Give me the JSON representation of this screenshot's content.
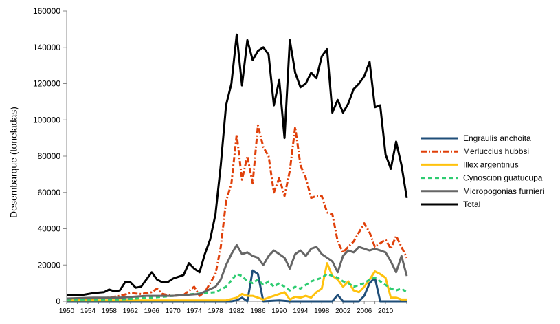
{
  "chart_data": {
    "type": "line",
    "title": "",
    "xlabel": "",
    "ylabel": "Desembarque (toneladas)",
    "xlim": [
      1950,
      2014
    ],
    "ylim": [
      0,
      160000
    ],
    "yticks": [
      0,
      20000,
      40000,
      60000,
      80000,
      100000,
      120000,
      140000,
      160000
    ],
    "ytick_labels": [
      "0",
      "20000",
      "40000",
      "60000",
      "80000",
      "100000",
      "120000",
      "140000",
      "160000"
    ],
    "xtick_labels": [
      "1950",
      "1954",
      "1958",
      "1962",
      "1966",
      "1970",
      "1974",
      "1978",
      "1982",
      "1986",
      "1990",
      "1994",
      "1998",
      "2002",
      "2006",
      "2010"
    ],
    "grid": false,
    "legend_position": "right",
    "series": [
      {
        "name": "Engraulis anchoita",
        "color": "#1f4e79",
        "dash": "solid",
        "points": [
          [
            1950,
            0
          ],
          [
            1980,
            0
          ],
          [
            1981,
            0
          ],
          [
            1982,
            500
          ],
          [
            1983,
            2000
          ],
          [
            1984,
            0
          ],
          [
            1985,
            17000
          ],
          [
            1986,
            15000
          ],
          [
            1987,
            0
          ],
          [
            1990,
            500
          ],
          [
            1992,
            0
          ],
          [
            2000,
            0
          ],
          [
            2001,
            3500
          ],
          [
            2002,
            0
          ],
          [
            2005,
            0
          ],
          [
            2006,
            3000
          ],
          [
            2007,
            10000
          ],
          [
            2008,
            13000
          ],
          [
            2009,
            0
          ],
          [
            2014,
            0
          ]
        ]
      },
      {
        "name": "Merluccius hubbsi",
        "color": "#e0400a",
        "dash": "dashdot",
        "points": [
          [
            1950,
            1000
          ],
          [
            1955,
            1500
          ],
          [
            1958,
            2000
          ],
          [
            1960,
            3000
          ],
          [
            1962,
            4500
          ],
          [
            1964,
            4000
          ],
          [
            1966,
            5000
          ],
          [
            1967,
            7000
          ],
          [
            1968,
            4000
          ],
          [
            1970,
            3000
          ],
          [
            1972,
            3500
          ],
          [
            1974,
            8000
          ],
          [
            1975,
            3000
          ],
          [
            1976,
            5000
          ],
          [
            1977,
            10000
          ],
          [
            1978,
            15000
          ],
          [
            1979,
            30000
          ],
          [
            1980,
            55000
          ],
          [
            1981,
            65000
          ],
          [
            1982,
            92000
          ],
          [
            1983,
            67000
          ],
          [
            1984,
            80000
          ],
          [
            1985,
            65000
          ],
          [
            1986,
            97000
          ],
          [
            1987,
            85000
          ],
          [
            1988,
            80000
          ],
          [
            1989,
            60000
          ],
          [
            1990,
            68000
          ],
          [
            1991,
            58000
          ],
          [
            1992,
            72000
          ],
          [
            1993,
            96000
          ],
          [
            1994,
            75000
          ],
          [
            1995,
            68000
          ],
          [
            1996,
            57000
          ],
          [
            1997,
            58000
          ],
          [
            1998,
            58000
          ],
          [
            1999,
            49000
          ],
          [
            2000,
            48000
          ],
          [
            2001,
            33000
          ],
          [
            2002,
            27000
          ],
          [
            2003,
            30000
          ],
          [
            2004,
            33000
          ],
          [
            2005,
            38000
          ],
          [
            2006,
            43000
          ],
          [
            2007,
            38000
          ],
          [
            2008,
            30000
          ],
          [
            2009,
            32000
          ],
          [
            2010,
            34000
          ],
          [
            2011,
            29000
          ],
          [
            2012,
            36000
          ],
          [
            2013,
            30000
          ],
          [
            2014,
            24000
          ]
        ]
      },
      {
        "name": "Illex argentinus",
        "color": "#ffc20e",
        "dash": "solid",
        "points": [
          [
            1950,
            500
          ],
          [
            1978,
            500
          ],
          [
            1980,
            500
          ],
          [
            1982,
            2000
          ],
          [
            1983,
            4000
          ],
          [
            1984,
            3000
          ],
          [
            1985,
            3000
          ],
          [
            1986,
            2000
          ],
          [
            1987,
            1000
          ],
          [
            1988,
            2000
          ],
          [
            1989,
            3000
          ],
          [
            1990,
            4000
          ],
          [
            1991,
            5000
          ],
          [
            1992,
            1000
          ],
          [
            1993,
            2500
          ],
          [
            1994,
            2000
          ],
          [
            1995,
            3000
          ],
          [
            1996,
            2000
          ],
          [
            1997,
            5000
          ],
          [
            1998,
            7000
          ],
          [
            1999,
            21000
          ],
          [
            2000,
            14000
          ],
          [
            2001,
            12000
          ],
          [
            2002,
            8000
          ],
          [
            2003,
            11000
          ],
          [
            2004,
            6000
          ],
          [
            2005,
            5000
          ],
          [
            2006,
            8000
          ],
          [
            2007,
            12000
          ],
          [
            2008,
            16500
          ],
          [
            2009,
            15000
          ],
          [
            2010,
            13000
          ],
          [
            2011,
            2000
          ],
          [
            2012,
            2000
          ],
          [
            2013,
            1000
          ],
          [
            2014,
            1000
          ]
        ]
      },
      {
        "name": "Cynoscion guatucupa",
        "color": "#2ecc71",
        "dash": "dash",
        "points": [
          [
            1950,
            1000
          ],
          [
            1960,
            1000
          ],
          [
            1966,
            2000
          ],
          [
            1970,
            3000
          ],
          [
            1974,
            4000
          ],
          [
            1978,
            5000
          ],
          [
            1980,
            8000
          ],
          [
            1982,
            15000
          ],
          [
            1983,
            14000
          ],
          [
            1984,
            11000
          ],
          [
            1985,
            10000
          ],
          [
            1986,
            12000
          ],
          [
            1987,
            9000
          ],
          [
            1988,
            11000
          ],
          [
            1989,
            8000
          ],
          [
            1990,
            10000
          ],
          [
            1991,
            8000
          ],
          [
            1992,
            6000
          ],
          [
            1993,
            8000
          ],
          [
            1994,
            7000
          ],
          [
            1995,
            9000
          ],
          [
            1996,
            11000
          ],
          [
            1997,
            12000
          ],
          [
            1998,
            13000
          ],
          [
            1999,
            15000
          ],
          [
            2000,
            14000
          ],
          [
            2001,
            13000
          ],
          [
            2002,
            11000
          ],
          [
            2003,
            10000
          ],
          [
            2004,
            8000
          ],
          [
            2005,
            9000
          ],
          [
            2006,
            10000
          ],
          [
            2007,
            12000
          ],
          [
            2008,
            13000
          ],
          [
            2009,
            11000
          ],
          [
            2010,
            9000
          ],
          [
            2011,
            7000
          ],
          [
            2012,
            6000
          ],
          [
            2013,
            7000
          ],
          [
            2014,
            5000
          ]
        ]
      },
      {
        "name": "Micropogonias furnieri",
        "color": "#666666",
        "dash": "solid",
        "points": [
          [
            1950,
            1500
          ],
          [
            1955,
            2000
          ],
          [
            1960,
            2000
          ],
          [
            1965,
            3000
          ],
          [
            1970,
            3000
          ],
          [
            1975,
            4000
          ],
          [
            1978,
            8000
          ],
          [
            1979,
            12000
          ],
          [
            1980,
            20000
          ],
          [
            1981,
            26000
          ],
          [
            1982,
            31000
          ],
          [
            1983,
            26000
          ],
          [
            1984,
            27000
          ],
          [
            1985,
            25000
          ],
          [
            1986,
            24000
          ],
          [
            1987,
            20000
          ],
          [
            1988,
            25000
          ],
          [
            1989,
            28000
          ],
          [
            1990,
            26000
          ],
          [
            1991,
            24000
          ],
          [
            1992,
            18000
          ],
          [
            1993,
            26000
          ],
          [
            1994,
            28000
          ],
          [
            1995,
            25000
          ],
          [
            1996,
            29000
          ],
          [
            1997,
            30000
          ],
          [
            1998,
            26000
          ],
          [
            1999,
            24000
          ],
          [
            2000,
            22000
          ],
          [
            2001,
            16000
          ],
          [
            2002,
            25000
          ],
          [
            2003,
            28000
          ],
          [
            2004,
            27000
          ],
          [
            2005,
            30000
          ],
          [
            2006,
            29000
          ],
          [
            2007,
            28000
          ],
          [
            2008,
            29000
          ],
          [
            2009,
            28000
          ],
          [
            2010,
            27000
          ],
          [
            2011,
            22000
          ],
          [
            2012,
            16000
          ],
          [
            2013,
            25000
          ],
          [
            2014,
            14000
          ]
        ]
      },
      {
        "name": "Total",
        "color": "#000000",
        "dash": "solid",
        "points": [
          [
            1950,
            3500
          ],
          [
            1953,
            3500
          ],
          [
            1955,
            4500
          ],
          [
            1957,
            5000
          ],
          [
            1958,
            6500
          ],
          [
            1959,
            5500
          ],
          [
            1960,
            6000
          ],
          [
            1961,
            10500
          ],
          [
            1962,
            10500
          ],
          [
            1963,
            7500
          ],
          [
            1964,
            8000
          ],
          [
            1965,
            12000
          ],
          [
            1966,
            16000
          ],
          [
            1967,
            12000
          ],
          [
            1968,
            10500
          ],
          [
            1969,
            10500
          ],
          [
            1970,
            12500
          ],
          [
            1971,
            13500
          ],
          [
            1972,
            14500
          ],
          [
            1973,
            21000
          ],
          [
            1974,
            18000
          ],
          [
            1975,
            16000
          ],
          [
            1976,
            26000
          ],
          [
            1977,
            34000
          ],
          [
            1978,
            48000
          ],
          [
            1979,
            75000
          ],
          [
            1980,
            108000
          ],
          [
            1981,
            120000
          ],
          [
            1982,
            147000
          ],
          [
            1983,
            119000
          ],
          [
            1984,
            144000
          ],
          [
            1985,
            133000
          ],
          [
            1986,
            138000
          ],
          [
            1987,
            140000
          ],
          [
            1988,
            136000
          ],
          [
            1989,
            108000
          ],
          [
            1990,
            122000
          ],
          [
            1991,
            90000
          ],
          [
            1992,
            144000
          ],
          [
            1993,
            126000
          ],
          [
            1994,
            118000
          ],
          [
            1995,
            120000
          ],
          [
            1996,
            126000
          ],
          [
            1997,
            123000
          ],
          [
            1998,
            135000
          ],
          [
            1999,
            139000
          ],
          [
            2000,
            104000
          ],
          [
            2001,
            111000
          ],
          [
            2002,
            104000
          ],
          [
            2003,
            109000
          ],
          [
            2004,
            117000
          ],
          [
            2005,
            120000
          ],
          [
            2006,
            124000
          ],
          [
            2007,
            132000
          ],
          [
            2008,
            107000
          ],
          [
            2009,
            108000
          ],
          [
            2010,
            81000
          ],
          [
            2011,
            73000
          ],
          [
            2012,
            88000
          ],
          [
            2013,
            75000
          ],
          [
            2014,
            57000
          ]
        ]
      }
    ]
  }
}
